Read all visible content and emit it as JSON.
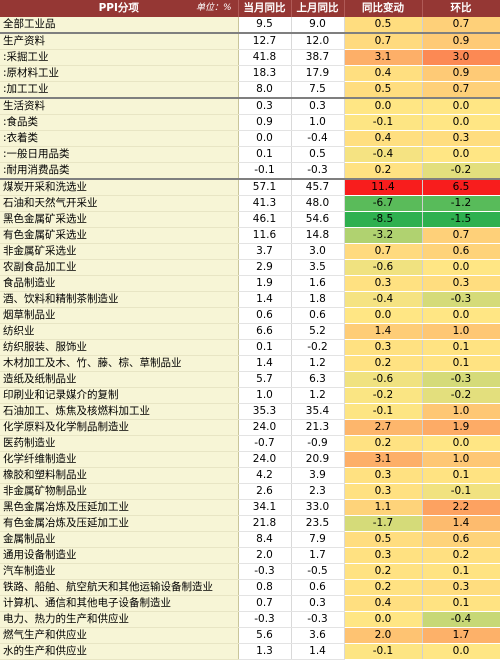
{
  "header": {
    "name": "PPI分项",
    "unit": "单位：%",
    "cols": [
      "当月同比",
      "上月同比",
      "同比变动",
      "环比"
    ]
  },
  "chart_data": {
    "type": "table",
    "columns": [
      "PPI分项",
      "当月同比",
      "上月同比",
      "同比变动",
      "环比"
    ],
    "rows": [
      {
        "name": "全部工业品",
        "cur": "9.5",
        "prev": "9.0",
        "chg": "0.5",
        "mom": "0.7",
        "group_end": true
      },
      {
        "name": "生产资料",
        "cur": "12.7",
        "prev": "12.0",
        "chg": "0.7",
        "mom": "0.9"
      },
      {
        "name": ":采掘工业",
        "cur": "41.8",
        "prev": "38.7",
        "chg": "3.1",
        "mom": "3.0"
      },
      {
        "name": ":原材料工业",
        "cur": "18.3",
        "prev": "17.9",
        "chg": "0.4",
        "mom": "0.9"
      },
      {
        "name": ":加工工业",
        "cur": "8.0",
        "prev": "7.5",
        "chg": "0.5",
        "mom": "0.7",
        "group_end": true
      },
      {
        "name": "生活资料",
        "cur": "0.3",
        "prev": "0.3",
        "chg": "0.0",
        "mom": "0.0"
      },
      {
        "name": ":食品类",
        "cur": "0.9",
        "prev": "1.0",
        "chg": "-0.1",
        "mom": "0.0"
      },
      {
        "name": ":衣着类",
        "cur": "0.0",
        "prev": "-0.4",
        "chg": "0.4",
        "mom": "0.3"
      },
      {
        "name": ":一般日用品类",
        "cur": "0.1",
        "prev": "0.5",
        "chg": "-0.4",
        "mom": "0.0"
      },
      {
        "name": ":耐用消费品类",
        "cur": "-0.1",
        "prev": "-0.3",
        "chg": "0.2",
        "mom": "-0.2",
        "group_end": true
      },
      {
        "name": "煤炭开采和洗选业",
        "cur": "57.1",
        "prev": "45.7",
        "chg": "11.4",
        "mom": "6.5"
      },
      {
        "name": "石油和天然气开采业",
        "cur": "41.3",
        "prev": "48.0",
        "chg": "-6.7",
        "mom": "-1.2"
      },
      {
        "name": "黑色金属矿采选业",
        "cur": "46.1",
        "prev": "54.6",
        "chg": "-8.5",
        "mom": "-1.5"
      },
      {
        "name": "有色金属矿采选业",
        "cur": "11.6",
        "prev": "14.8",
        "chg": "-3.2",
        "mom": "0.7"
      },
      {
        "name": "非金属矿采选业",
        "cur": "3.7",
        "prev": "3.0",
        "chg": "0.7",
        "mom": "0.6"
      },
      {
        "name": "农副食品加工业",
        "cur": "2.9",
        "prev": "3.5",
        "chg": "-0.6",
        "mom": "0.0"
      },
      {
        "name": "食品制造业",
        "cur": "1.9",
        "prev": "1.6",
        "chg": "0.3",
        "mom": "0.3"
      },
      {
        "name": "酒、饮料和精制茶制造业",
        "cur": "1.4",
        "prev": "1.8",
        "chg": "-0.4",
        "mom": "-0.3"
      },
      {
        "name": "烟草制品业",
        "cur": "0.6",
        "prev": "0.6",
        "chg": "0.0",
        "mom": "0.0"
      },
      {
        "name": "纺织业",
        "cur": "6.6",
        "prev": "5.2",
        "chg": "1.4",
        "mom": "1.0"
      },
      {
        "name": "纺织服装、服饰业",
        "cur": "0.1",
        "prev": "-0.2",
        "chg": "0.3",
        "mom": "0.1"
      },
      {
        "name": "木材加工及木、竹、藤、棕、草制品业",
        "cur": "1.4",
        "prev": "1.2",
        "chg": "0.2",
        "mom": "0.1"
      },
      {
        "name": "造纸及纸制品业",
        "cur": "5.7",
        "prev": "6.3",
        "chg": "-0.6",
        "mom": "-0.3"
      },
      {
        "name": "印刷业和记录媒介的复制",
        "cur": "1.0",
        "prev": "1.2",
        "chg": "-0.2",
        "mom": "-0.2"
      },
      {
        "name": "石油加工、炼焦及核燃料加工业",
        "cur": "35.3",
        "prev": "35.4",
        "chg": "-0.1",
        "mom": "1.0"
      },
      {
        "name": "化学原料及化学制品制造业",
        "cur": "24.0",
        "prev": "21.3",
        "chg": "2.7",
        "mom": "1.9"
      },
      {
        "name": "医药制造业",
        "cur": "-0.7",
        "prev": "-0.9",
        "chg": "0.2",
        "mom": "0.0"
      },
      {
        "name": "化学纤维制造业",
        "cur": "24.0",
        "prev": "20.9",
        "chg": "3.1",
        "mom": "1.0"
      },
      {
        "name": "橡胶和塑料制品业",
        "cur": "4.2",
        "prev": "3.9",
        "chg": "0.3",
        "mom": "0.1"
      },
      {
        "name": "非金属矿物制品业",
        "cur": "2.6",
        "prev": "2.3",
        "chg": "0.3",
        "mom": "-0.1"
      },
      {
        "name": "黑色金属冶炼及压延加工业",
        "cur": "34.1",
        "prev": "33.0",
        "chg": "1.1",
        "mom": "2.2"
      },
      {
        "name": "有色金属冶炼及压延加工业",
        "cur": "21.8",
        "prev": "23.5",
        "chg": "-1.7",
        "mom": "1.4"
      },
      {
        "name": "金属制品业",
        "cur": "8.4",
        "prev": "7.9",
        "chg": "0.5",
        "mom": "0.6"
      },
      {
        "name": "通用设备制造业",
        "cur": "2.0",
        "prev": "1.7",
        "chg": "0.3",
        "mom": "0.2"
      },
      {
        "name": "汽车制造业",
        "cur": "-0.3",
        "prev": "-0.5",
        "chg": "0.2",
        "mom": "0.1"
      },
      {
        "name": "铁路、船舶、航空航天和其他运输设备制造业",
        "cur": "0.8",
        "prev": "0.6",
        "chg": "0.2",
        "mom": "0.3"
      },
      {
        "name": "计算机、通信和其他电子设备制造业",
        "cur": "0.7",
        "prev": "0.3",
        "chg": "0.4",
        "mom": "0.1"
      },
      {
        "name": "电力、热力的生产和供应业",
        "cur": "-0.3",
        "prev": "-0.3",
        "chg": "0.0",
        "mom": "-0.4"
      },
      {
        "name": "燃气生产和供应业",
        "cur": "5.6",
        "prev": "3.6",
        "chg": "2.0",
        "mom": "1.7"
      },
      {
        "name": "水的生产和供应业",
        "cur": "1.3",
        "prev": "1.4",
        "chg": "-0.1",
        "mom": "0.0"
      }
    ]
  }
}
